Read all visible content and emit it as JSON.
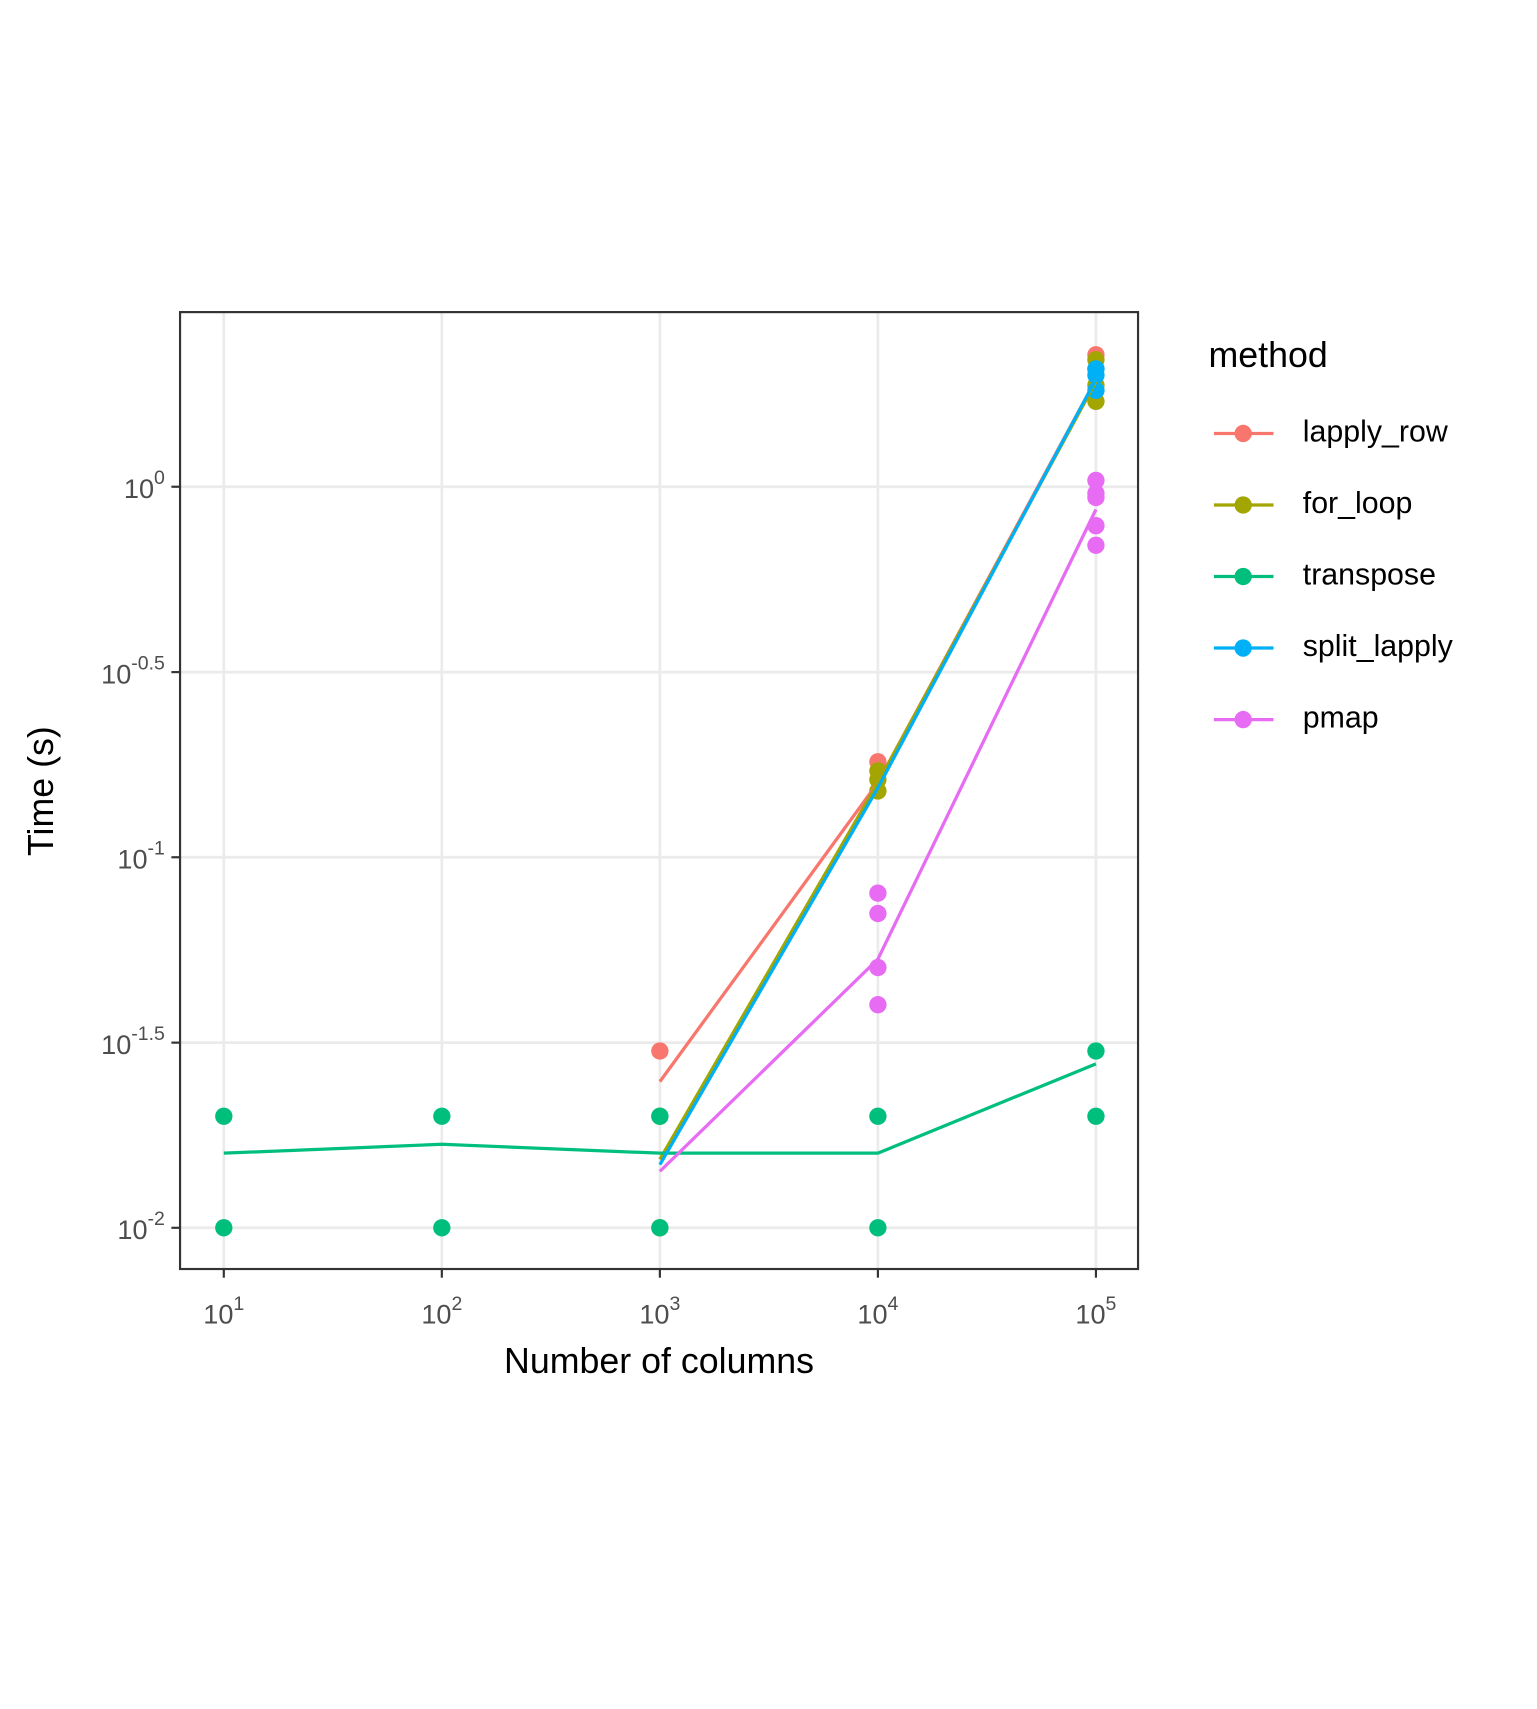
{
  "chart_data": {
    "type": "scatter-line",
    "x_label": "Number of columns",
    "y_label": "Time (s)",
    "xlog": true,
    "ylog": true,
    "grid": true,
    "xlim": [
      6.3,
      156000
    ],
    "ylim": [
      0.00774,
      2.96
    ],
    "xticks": [
      {
        "value": 10,
        "label": "10^1"
      },
      {
        "value": 100,
        "label": "10^2"
      },
      {
        "value": 1000,
        "label": "10^3"
      },
      {
        "value": 10000,
        "label": "10^4"
      },
      {
        "value": 100000,
        "label": "10^5"
      }
    ],
    "yticks": [
      {
        "value": 0.01,
        "label": "10^-2"
      },
      {
        "value": 0.0316,
        "label": "10^-1.5"
      },
      {
        "value": 0.1,
        "label": "10^-1"
      },
      {
        "value": 0.316,
        "label": "10^-0.5"
      },
      {
        "value": 1,
        "label": "10^0"
      }
    ],
    "legend_title": "method",
    "legend_position": "right",
    "series": [
      {
        "name": "lapply_row",
        "color": "#F8766D",
        "x": [
          1000,
          10000,
          100000
        ],
        "values": [
          0.03,
          0.181,
          2.27
        ],
        "line_x": [
          1000,
          10000,
          100000
        ],
        "line_values": [
          0.0248,
          0.159,
          1.95
        ]
      },
      {
        "name": "for_loop",
        "color": "#A3A500",
        "x": [
          1000,
          1000,
          10000,
          10000,
          10000,
          100000,
          100000,
          100000,
          100000
        ],
        "values": [
          0.02,
          0.01,
          0.171,
          0.162,
          0.151,
          2.2,
          2.08,
          1.88,
          1.7
        ],
        "line_x": [
          1000,
          10000,
          100000
        ],
        "line_values": [
          0.0153,
          0.159,
          1.92
        ]
      },
      {
        "name": "transpose",
        "color": "#00BF7D",
        "x": [
          10,
          10,
          100,
          100,
          1000,
          1000,
          10000,
          10000,
          100000,
          100000
        ],
        "values": [
          0.02,
          0.01,
          0.02,
          0.01,
          0.02,
          0.01,
          0.02,
          0.01,
          0.03,
          0.02
        ],
        "line_x": [
          10,
          100,
          1000,
          10000,
          100000
        ],
        "line_values": [
          0.0159,
          0.0168,
          0.0159,
          0.0159,
          0.0277
        ]
      },
      {
        "name": "split_lapply",
        "color": "#00B0F6",
        "x": [
          100000,
          100000,
          100000
        ],
        "values": [
          2.08,
          2.0,
          1.82
        ],
        "line_x": [
          1000,
          10000,
          100000
        ],
        "line_values": [
          0.0148,
          0.154,
          1.95
        ]
      },
      {
        "name": "pmap",
        "color": "#E76BF3",
        "x": [
          10000,
          10000,
          10000,
          10000,
          100000,
          100000,
          100000,
          100000,
          100000
        ],
        "values": [
          0.08,
          0.0705,
          0.0504,
          0.04,
          1.04,
          0.96,
          0.935,
          0.785,
          0.695
        ],
        "line_x": [
          1000,
          10000,
          100000
        ],
        "line_values": [
          0.0142,
          0.0531,
          0.868
        ]
      }
    ]
  }
}
